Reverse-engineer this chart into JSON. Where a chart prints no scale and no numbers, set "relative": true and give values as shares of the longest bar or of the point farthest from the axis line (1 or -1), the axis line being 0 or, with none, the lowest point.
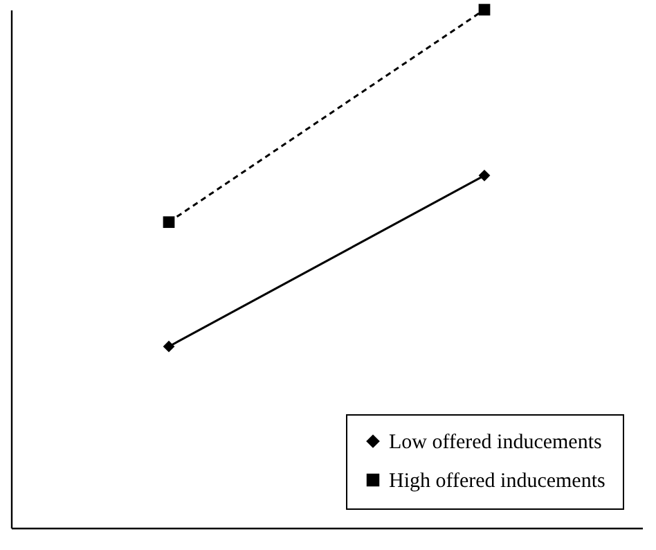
{
  "chart_data": {
    "type": "line",
    "relative": true,
    "categories": [
      null,
      null
    ],
    "legend": "bottom right",
    "series": [
      {
        "name": "Low offered inducements",
        "color": "#000000",
        "marker": "diamond",
        "line_style": "solid",
        "values": [
          0.35,
          0.68
        ]
      },
      {
        "name": "High offered inducements",
        "color": "#000000",
        "marker": "square",
        "line_style": "dashed",
        "values": [
          0.59,
          1
        ]
      }
    ]
  }
}
